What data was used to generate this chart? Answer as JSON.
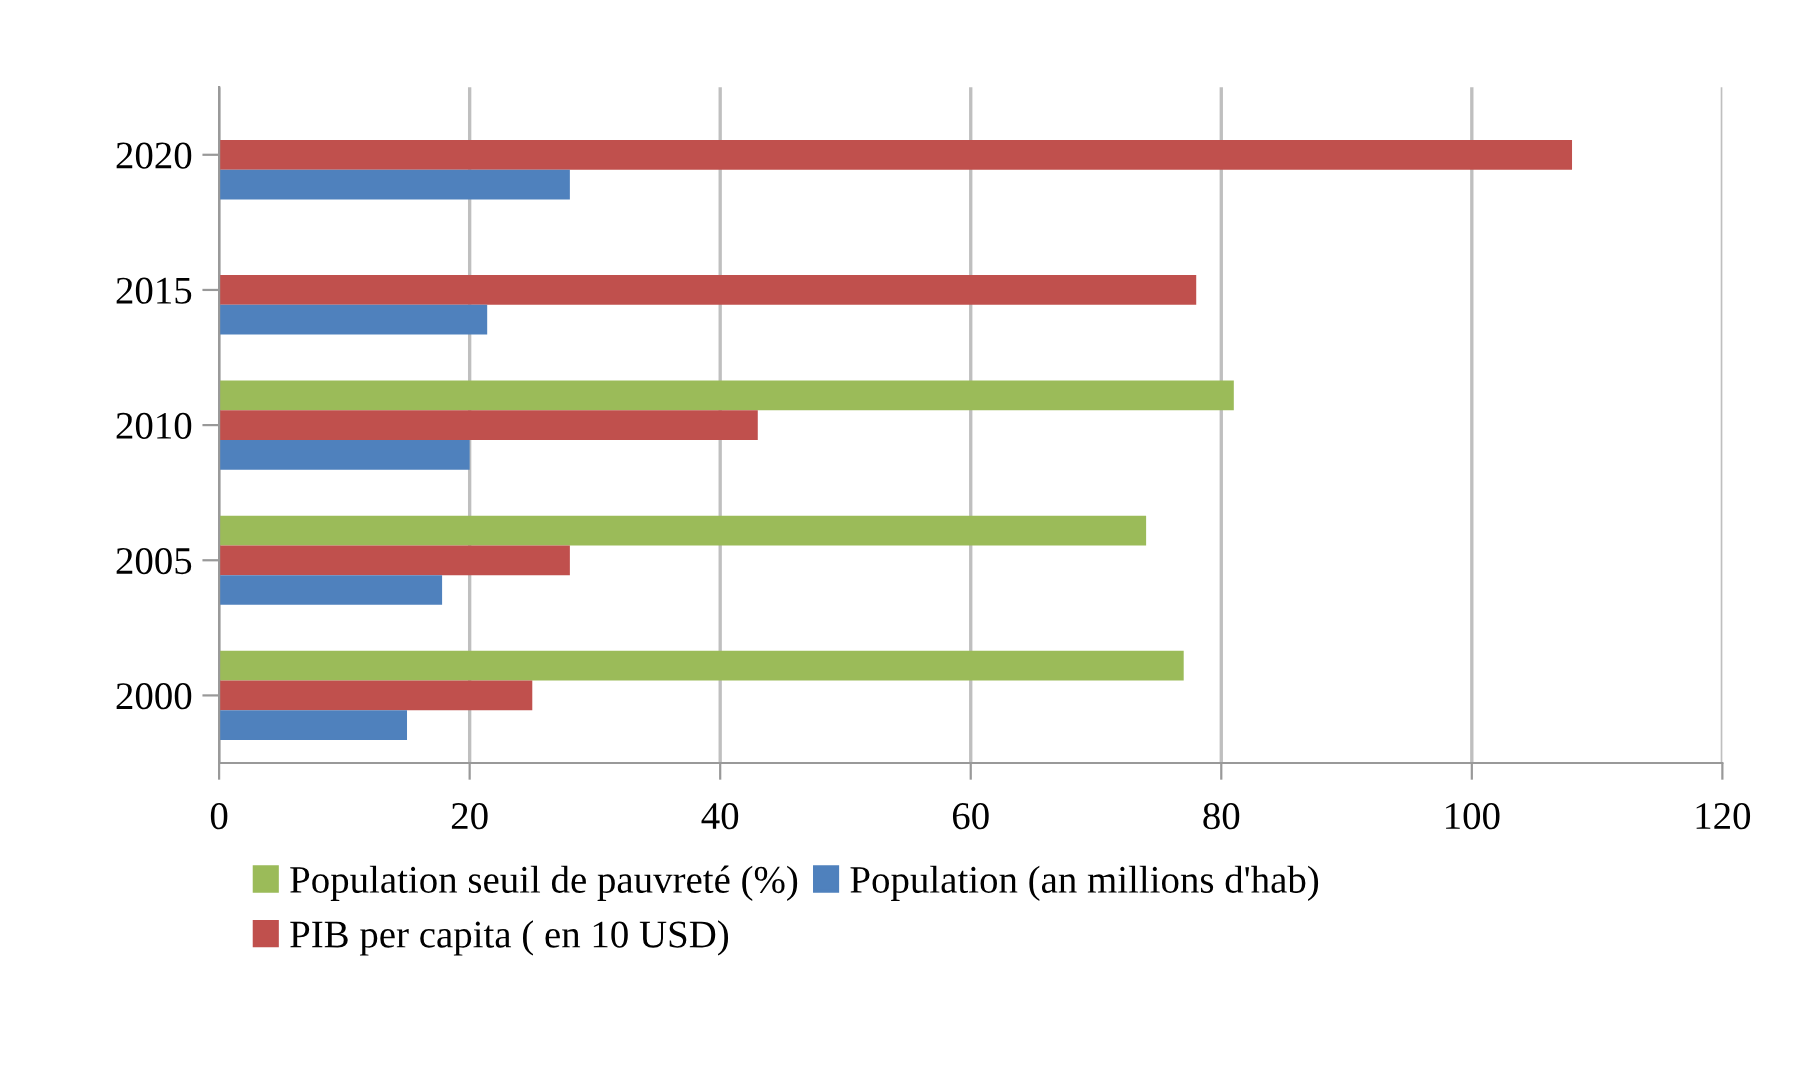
{
  "chart_data": {
    "type": "bar",
    "orientation": "horizontal",
    "categories": [
      "2020",
      "2015",
      "2010",
      "2005",
      "2000"
    ],
    "series": [
      {
        "name": "Population seuil de pauvreté (%)",
        "color": "#9bbb59",
        "values": [
          null,
          null,
          81,
          74,
          77
        ]
      },
      {
        "name": "PIB per capita ( en 10 USD)",
        "color": "#c0504d",
        "values": [
          108,
          78,
          43,
          28,
          25
        ]
      },
      {
        "name": "Population (an millions d'hab)",
        "color": "#4f81bd",
        "values": [
          28,
          21.4,
          20,
          17.8,
          15
        ]
      }
    ],
    "xlim": [
      0,
      120
    ],
    "xticks": [
      0,
      20,
      40,
      60,
      80,
      100,
      120
    ],
    "grid": "x",
    "legend": "bottom"
  }
}
